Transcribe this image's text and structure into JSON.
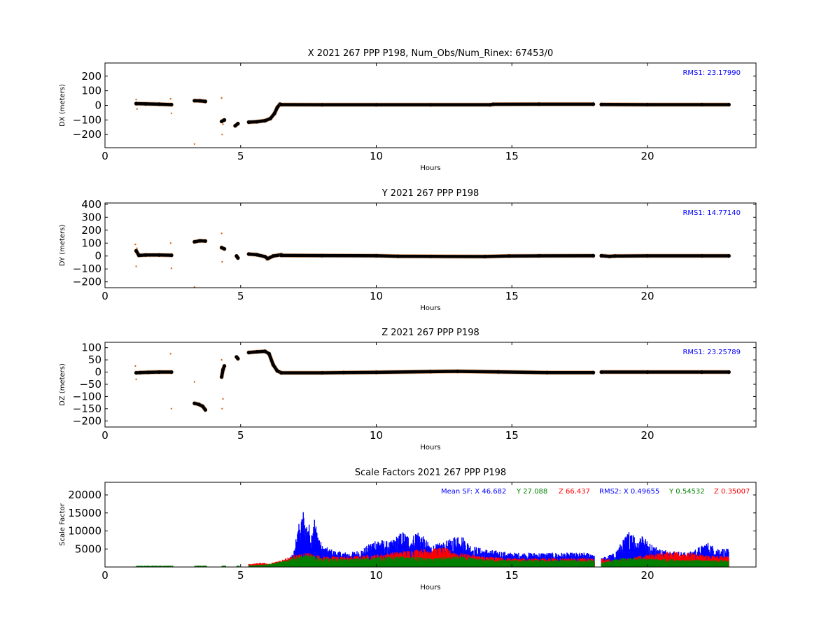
{
  "chart_data": [
    {
      "type": "scatter",
      "title": "X 2021 267 PPP  P198, Num_Obs/Num_Rinex: 67453/0",
      "xlabel": "Hours",
      "ylabel": "DX (meters)",
      "xlim": [
        0,
        24
      ],
      "ylim": [
        -290,
        290
      ],
      "xticks": [
        0,
        5,
        10,
        15,
        20
      ],
      "yticks": [
        -200,
        -100,
        0,
        100,
        200
      ],
      "annotation": "RMS1: 23.17990",
      "annotation_color": "#0000ff",
      "series": [
        {
          "color": "#000000",
          "segments": [
            {
              "x": [
                1.15,
                1.5,
                2.0,
                2.45
              ],
              "y": [
                12,
                10,
                8,
                5
              ]
            },
            {
              "x": [
                3.3,
                3.5,
                3.7
              ],
              "y": [
                32,
                31,
                27
              ]
            },
            {
              "x": [
                4.3,
                4.4
              ],
              "y": [
                -110,
                -100
              ]
            },
            {
              "x": [
                4.8,
                4.9
              ],
              "y": [
                -140,
                -125
              ]
            },
            {
              "x": [
                5.3,
                5.6,
                5.9,
                6.1,
                6.25,
                6.35,
                6.45
              ],
              "y": [
                -115,
                -112,
                -105,
                -90,
                -55,
                -15,
                8
              ]
            },
            {
              "x": [
                6.5,
                8,
                10,
                12,
                14.2,
                14.3,
                16,
                18
              ],
              "y": [
                5,
                4,
                4,
                4,
                4,
                7,
                8,
                8
              ]
            },
            {
              "x": [
                18.3,
                20,
                22,
                23
              ],
              "y": [
                6,
                5,
                5,
                5
              ]
            }
          ]
        }
      ],
      "outliers": {
        "color": "#d2691e",
        "x": [
          1.15,
          1.18,
          2.42,
          2.45,
          3.3,
          4.3,
          4.32,
          4.35
        ],
        "y": [
          40,
          -25,
          45,
          -55,
          -265,
          50,
          -200,
          -130
        ]
      }
    },
    {
      "type": "scatter",
      "title": "Y 2021 267 PPP  P198",
      "xlabel": "Hours",
      "ylabel": "DY (meters)",
      "xlim": [
        0,
        24
      ],
      "ylim": [
        -245,
        410
      ],
      "xticks": [
        0,
        5,
        10,
        15,
        20
      ],
      "yticks": [
        -200,
        -100,
        0,
        100,
        200,
        300,
        400
      ],
      "annotation": "RMS1: 14.77140",
      "annotation_color": "#0000ff",
      "series": [
        {
          "color": "#000000",
          "segments": [
            {
              "x": [
                1.15,
                1.25,
                1.5,
                2.0,
                2.45
              ],
              "y": [
                40,
                5,
                8,
                8,
                6
              ]
            },
            {
              "x": [
                3.3,
                3.5,
                3.7
              ],
              "y": [
                110,
                118,
                116
              ]
            },
            {
              "x": [
                4.3,
                4.4
              ],
              "y": [
                65,
                55
              ]
            },
            {
              "x": [
                4.85,
                4.9
              ],
              "y": [
                0,
                -15
              ]
            },
            {
              "x": [
                5.3,
                5.6,
                5.9,
                6.0,
                6.2,
                6.5
              ],
              "y": [
                15,
                10,
                -5,
                -20,
                0,
                10
              ]
            },
            {
              "x": [
                6.5,
                8,
                10,
                10.8,
                12,
                14,
                14.9,
                16,
                18
              ],
              "y": [
                5,
                3,
                2,
                -2,
                -3,
                -4,
                0,
                1,
                2
              ]
            },
            {
              "x": [
                18.3,
                18.6,
                18.8,
                20,
                22,
                23
              ],
              "y": [
                2,
                -3,
                0,
                1,
                1,
                1
              ]
            }
          ]
        }
      ],
      "outliers": {
        "color": "#d2691e",
        "x": [
          1.12,
          1.15,
          1.18,
          2.42,
          2.45,
          3.3,
          4.3,
          4.32,
          5.95
        ],
        "y": [
          90,
          -80,
          60,
          100,
          -95,
          -240,
          175,
          -45,
          -30
        ]
      }
    },
    {
      "type": "scatter",
      "title": "Z 2021 267 PPP  P198",
      "xlabel": "Hours",
      "ylabel": "DZ (meters)",
      "xlim": [
        0,
        24
      ],
      "ylim": [
        -225,
        122
      ],
      "xticks": [
        0,
        5,
        10,
        15,
        20
      ],
      "yticks": [
        -200,
        -150,
        -100,
        -50,
        0,
        50,
        100
      ],
      "annotation": "RMS1: 23.25789",
      "annotation_color": "#0000ff",
      "series": [
        {
          "color": "#000000",
          "segments": [
            {
              "x": [
                1.15,
                1.3,
                1.6,
                2.0,
                2.45
              ],
              "y": [
                -3,
                -2,
                -1,
                0,
                0
              ]
            },
            {
              "x": [
                3.3,
                3.45,
                3.6,
                3.7
              ],
              "y": [
                -128,
                -132,
                -140,
                -155
              ]
            },
            {
              "x": [
                4.3,
                4.35,
                4.4
              ],
              "y": [
                -20,
                10,
                25
              ]
            },
            {
              "x": [
                4.85,
                4.9
              ],
              "y": [
                62,
                55
              ]
            },
            {
              "x": [
                5.3,
                5.6,
                5.9,
                6.05,
                6.2,
                6.35,
                6.5
              ],
              "y": [
                80,
                83,
                85,
                75,
                30,
                5,
                -3
              ]
            },
            {
              "x": [
                6.5,
                8,
                8.8,
                10,
                12,
                13,
                14.5,
                16.3,
                18
              ],
              "y": [
                -3,
                -3,
                -2,
                -1,
                2,
                3,
                1,
                -2,
                -2
              ]
            },
            {
              "x": [
                18.3,
                20,
                22,
                23
              ],
              "y": [
                0,
                0,
                0,
                0
              ]
            }
          ]
        }
      ],
      "outliers": {
        "color": "#d2691e",
        "x": [
          1.12,
          1.15,
          2.42,
          2.45,
          3.3,
          4.3,
          4.32,
          4.35
        ],
        "y": [
          25,
          -30,
          75,
          -150,
          -40,
          50,
          -150,
          -110
        ]
      }
    },
    {
      "type": "scatter",
      "title": "Scale Factors 2021 267 PPP  P198",
      "xlabel": "Hours",
      "ylabel": "Scale Factor",
      "xlim": [
        0,
        24
      ],
      "ylim": [
        0,
        23500
      ],
      "xticks": [
        0,
        5,
        10,
        15,
        20
      ],
      "yticks": [
        5000,
        10000,
        15000,
        20000
      ],
      "annotation_parts": [
        {
          "text": "Mean SF: X  46.682",
          "color": "#0000ff"
        },
        {
          "text": "Y  27.088",
          "color": "#008000"
        },
        {
          "text": "Z  66.437",
          "color": "#ff0000"
        },
        {
          "text": "RMS2: X  0.49655",
          "color": "#0000ff"
        },
        {
          "text": "Y  0.54532",
          "color": "#008000"
        },
        {
          "text": "Z  0.35007",
          "color": "#ff0000"
        }
      ],
      "series": [
        {
          "name": "X",
          "color": "#0000ff",
          "x": [
            6.5,
            6.8,
            7.0,
            7.1,
            7.2,
            7.3,
            7.4,
            7.5,
            7.6,
            7.7,
            7.8,
            8.0,
            8.5,
            9.0,
            9.5,
            10.0,
            10.5,
            10.8,
            11.0,
            11.3,
            11.5,
            11.8,
            12.0,
            12.5,
            12.8,
            13.0,
            13.2,
            13.5,
            14.0,
            14.5,
            15.0,
            16.0,
            17.0,
            18.0,
            18.3,
            18.8,
            19.0,
            19.4,
            19.6,
            19.8,
            20.0,
            20.5,
            21.0,
            21.5,
            22.0,
            22.2,
            22.5,
            23.0
          ],
          "y": [
            1000,
            2500,
            5000,
            13000,
            11000,
            16500,
            12000,
            13000,
            9000,
            15000,
            11000,
            6000,
            4500,
            4000,
            5000,
            8000,
            7000,
            9000,
            10000,
            8000,
            10500,
            8000,
            6000,
            7000,
            8000,
            9500,
            8500,
            6000,
            5000,
            4500,
            4000,
            4000,
            4000,
            4000,
            2500,
            4000,
            6500,
            11000,
            7000,
            10000,
            7000,
            5000,
            4500,
            4000,
            6000,
            7000,
            5500,
            5000
          ]
        },
        {
          "name": "Z",
          "color": "#ff0000",
          "x": [
            5.3,
            5.8,
            6.0,
            6.5,
            7.0,
            7.5,
            8.0,
            9.0,
            10.0,
            11.5,
            12.5,
            13.0,
            14.0,
            15.0,
            18.0,
            19.0,
            20.0,
            21.0,
            22.0,
            23.0
          ],
          "y": [
            800,
            1300,
            900,
            2000,
            3500,
            4000,
            3000,
            3000,
            3500,
            5000,
            5500,
            4000,
            3000,
            2500,
            2500,
            2000,
            3500,
            4500,
            3500,
            3000
          ],
          "base": [
            0,
            0,
            0,
            0,
            0,
            0,
            0,
            0,
            0,
            0,
            0,
            0,
            0,
            0,
            0,
            0,
            0,
            0,
            0,
            0
          ]
        },
        {
          "name": "Y",
          "color": "#008000",
          "x": [
            1.15,
            2.5,
            3.3,
            3.7,
            4.3,
            4.4,
            4.85,
            4.9,
            5.3,
            6.0,
            6.5,
            7.0,
            7.5,
            8.0,
            9.0,
            10.0,
            11.0,
            12.0,
            13.0,
            14.0,
            15.0,
            16.0,
            17.0,
            18.0,
            18.3,
            19.0,
            20.0,
            21.0,
            22.0,
            23.0
          ],
          "y": [
            400,
            400,
            400,
            400,
            400,
            400,
            400,
            400,
            500,
            800,
            1500,
            3000,
            3500,
            2500,
            2300,
            2800,
            3000,
            2500,
            3000,
            2200,
            2000,
            2000,
            2000,
            2000,
            1200,
            2500,
            2500,
            2200,
            2000,
            2000
          ]
        }
      ]
    }
  ]
}
